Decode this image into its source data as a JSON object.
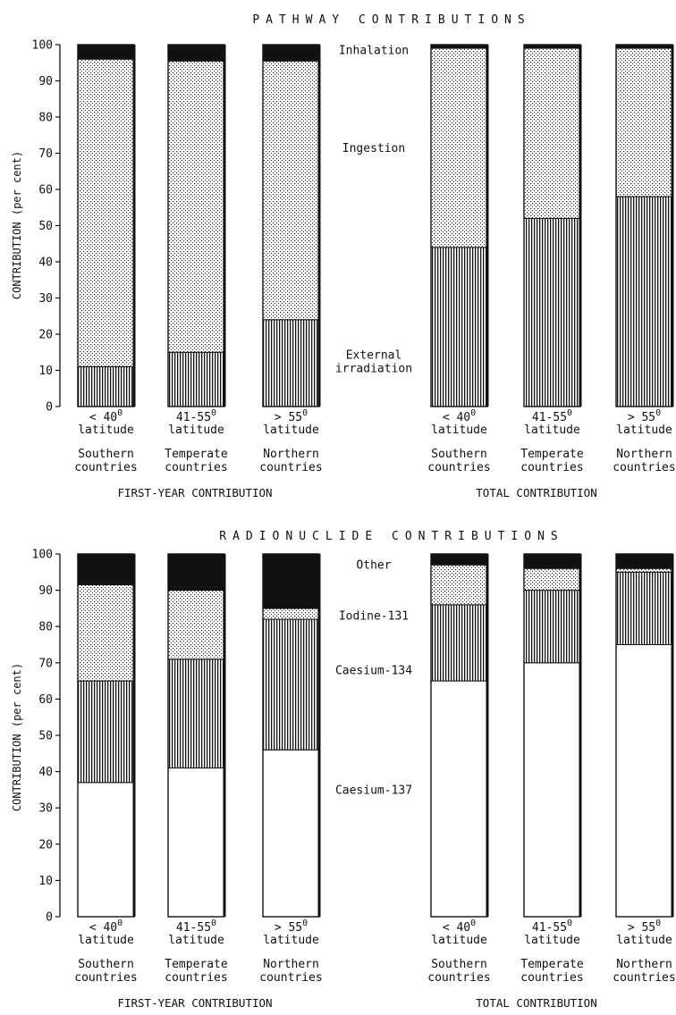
{
  "chart_data": [
    {
      "type": "bar",
      "stacked": true,
      "title": "PATHWAY CONTRIBUTIONS",
      "ylabel": "CONTRIBUTION (per cent)",
      "ylim": [
        0,
        100
      ],
      "yticks": [
        0,
        10,
        20,
        30,
        40,
        50,
        60,
        70,
        80,
        90,
        100
      ],
      "groups": [
        "FIRST-YEAR CONTRIBUTION",
        "TOTAL CONTRIBUTION"
      ],
      "categories": [
        {
          "lat": "latitude",
          "region": "Southern",
          "word": "countries"
        },
        {
          "lat": "latitude",
          "region": "Temperate",
          "word": "countries"
        },
        {
          "lat": "latitude",
          "region": "Northern",
          "word": "countries"
        }
      ],
      "category_ranges": [
        {
          "op": "<",
          "n": "40",
          "sup": "0"
        },
        {
          "op": "",
          "n": "41-55",
          "sup": "0"
        },
        {
          "op": ">",
          "n": "55",
          "sup": "0"
        }
      ],
      "series": [
        {
          "name": "External irradiation",
          "pattern": "vertical-lines",
          "values": [
            [
              11,
              15,
              24
            ],
            [
              44,
              52,
              58
            ]
          ]
        },
        {
          "name": "Ingestion",
          "pattern": "dots",
          "values": [
            [
              85,
              80.5,
              71.5
            ],
            [
              55,
              47,
              41
            ]
          ]
        },
        {
          "name": "Inhalation",
          "pattern": "solid-black",
          "values": [
            [
              4,
              4.5,
              4.5
            ],
            [
              1,
              1,
              1
            ]
          ]
        }
      ],
      "layer_labels": [
        {
          "lines": [
            "Inhalation"
          ],
          "at": 98.5
        },
        {
          "lines": [
            "Ingestion"
          ],
          "at": 71.5
        },
        {
          "lines": [
            "External",
            "irradiation"
          ],
          "at": 12.5
        }
      ]
    },
    {
      "type": "bar",
      "stacked": true,
      "title": "RADIONUCLIDE CONTRIBUTIONS",
      "ylabel": "CONTRIBUTION (per cent)",
      "ylim": [
        0,
        100
      ],
      "yticks": [
        0,
        10,
        20,
        30,
        40,
        50,
        60,
        70,
        80,
        90,
        100
      ],
      "groups": [
        "FIRST-YEAR CONTRIBUTION",
        "TOTAL CONTRIBUTION"
      ],
      "categories": [
        {
          "lat": "latitude",
          "region": "Southern",
          "word": "countries"
        },
        {
          "lat": "latitude",
          "region": "Temperate",
          "word": "countries"
        },
        {
          "lat": "latitude",
          "region": "Northern",
          "word": "countries"
        }
      ],
      "category_ranges": [
        {
          "op": "<",
          "n": "40",
          "sup": "0"
        },
        {
          "op": "",
          "n": "41-55",
          "sup": "0"
        },
        {
          "op": ">",
          "n": "55",
          "sup": "0"
        }
      ],
      "series": [
        {
          "name": "Caesium-137",
          "pattern": "white",
          "values": [
            [
              37,
              41,
              46
            ],
            [
              65,
              70,
              75
            ]
          ]
        },
        {
          "name": "Caesium-134",
          "pattern": "vertical-lines",
          "values": [
            [
              28,
              30,
              36
            ],
            [
              21,
              20,
              20
            ]
          ]
        },
        {
          "name": "Iodine-131",
          "pattern": "dots",
          "values": [
            [
              26.5,
              19,
              3
            ],
            [
              11,
              6,
              1
            ]
          ]
        },
        {
          "name": "Other",
          "pattern": "solid-black",
          "values": [
            [
              8.5,
              10,
              15
            ],
            [
              3,
              4,
              4
            ]
          ]
        }
      ],
      "layer_labels": [
        {
          "lines": [
            "Other"
          ],
          "at": 97
        },
        {
          "lines": [
            "Iodine-131"
          ],
          "at": 83
        },
        {
          "lines": [
            "Caesium-134"
          ],
          "at": 68
        },
        {
          "lines": [
            "Caesium-137"
          ],
          "at": 35
        }
      ]
    }
  ]
}
